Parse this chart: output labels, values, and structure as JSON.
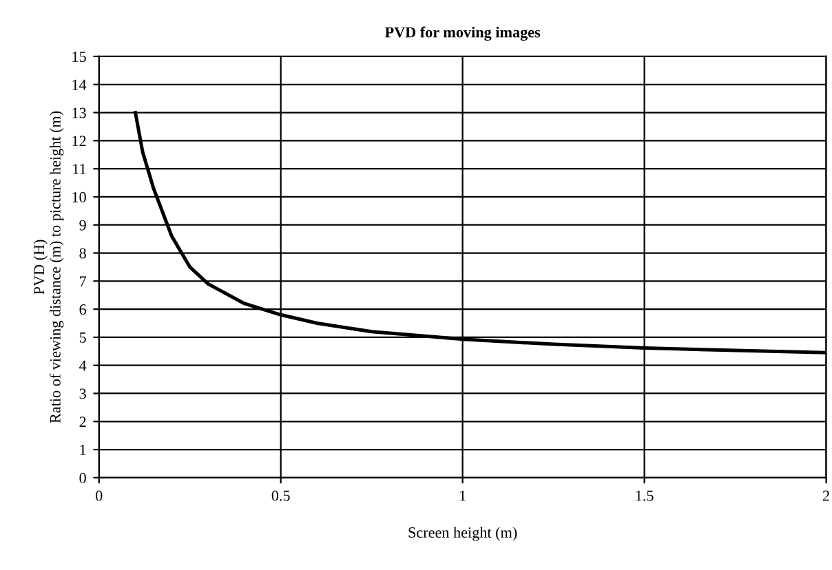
{
  "chart_data": {
    "type": "line",
    "title": "PVD for moving images",
    "xlabel": "Screen height (m)",
    "ylabel": "PVD (H)\nRatio of viewing distance (m) to picture height (m)",
    "x": [
      0.1,
      0.12,
      0.15,
      0.2,
      0.25,
      0.3,
      0.4,
      0.5,
      0.6,
      0.75,
      1.0,
      1.25,
      1.5,
      1.75,
      2.0
    ],
    "series": [
      {
        "color": "#000000",
        "values": [
          13,
          11.6,
          10.3,
          8.6,
          7.5,
          6.9,
          6.2,
          5.8,
          5.5,
          5.2,
          4.93,
          4.75,
          4.62,
          4.53,
          4.45
        ]
      }
    ],
    "xlim": [
      0,
      2
    ],
    "ylim": [
      0,
      15
    ],
    "xticks": [
      0,
      0.5,
      1,
      1.5,
      2
    ],
    "yticks": [
      0,
      1,
      2,
      3,
      4,
      5,
      6,
      7,
      8,
      9,
      10,
      11,
      12,
      13,
      14,
      15
    ],
    "grid": true,
    "marker": "none",
    "line_style": "solid"
  }
}
